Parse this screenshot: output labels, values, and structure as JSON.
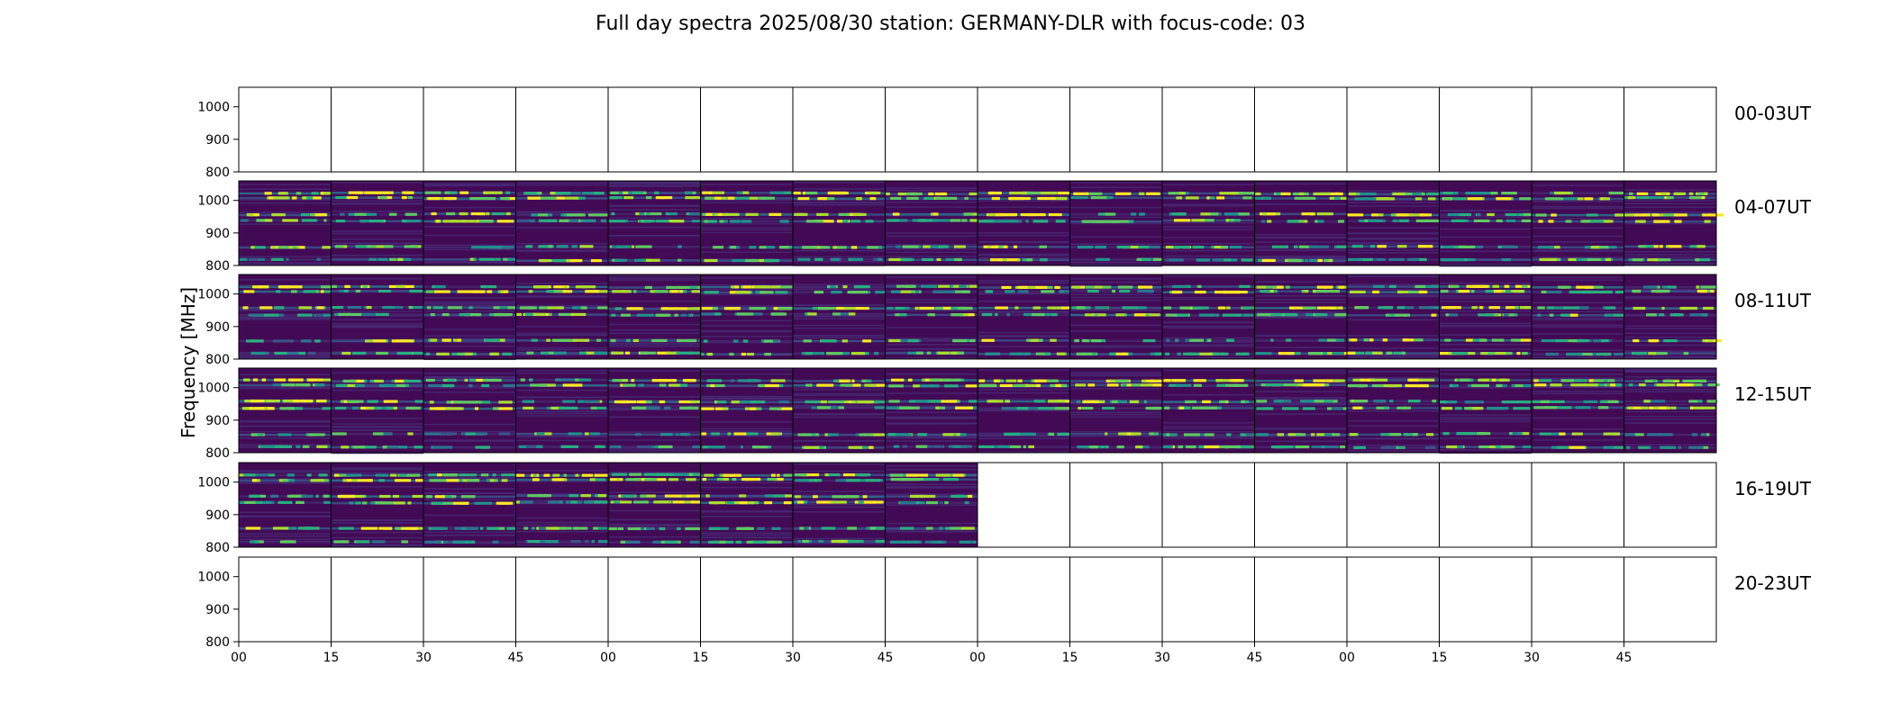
{
  "chart_data": {
    "type": "heatmap",
    "title": "Full day spectra 2025/08/30 station: GERMANY-DLR with focus-code: 03",
    "ylabel": "Frequency [MHz]",
    "ylim": [
      800,
      1060
    ],
    "yticks": [
      "1000",
      "900",
      "800"
    ],
    "xticks": [
      "00",
      "15",
      "30",
      "45",
      "00",
      "15",
      "30",
      "45",
      "00",
      "15",
      "30",
      "45",
      "00",
      "15",
      "30",
      "45"
    ],
    "panels_per_row": 16,
    "panel_minutes": 15,
    "colormap": "viridis",
    "rows": [
      {
        "label": "00-03UT",
        "filled_panels": 0
      },
      {
        "label": "04-07UT",
        "filled_panels": 16
      },
      {
        "label": "08-11UT",
        "filled_panels": 16
      },
      {
        "label": "12-15UT",
        "filled_panels": 16
      },
      {
        "label": "16-19UT",
        "filled_panels": 8
      },
      {
        "label": "20-23UT",
        "filled_panels": 0
      }
    ],
    "emission_bands_mhz": [
      1025,
      1010,
      960,
      940,
      860,
      820
    ]
  }
}
